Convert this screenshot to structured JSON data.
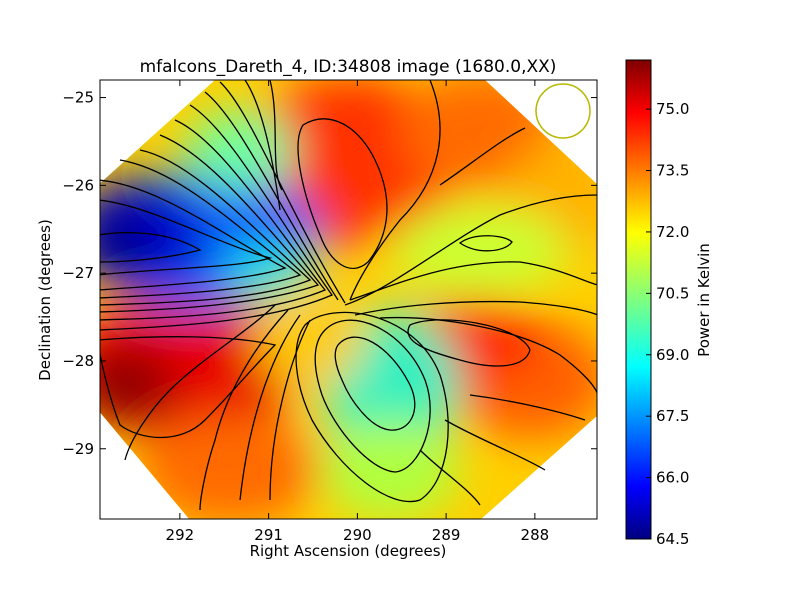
{
  "chart_data": {
    "type": "heatmap",
    "title": "mfalcons_Dareth_4, ID:34808 image (1680.0,XX)",
    "xlabel": "Right Ascension (degrees)",
    "ylabel": "Declination (degrees)",
    "xlim": [
      292.9,
      287.3
    ],
    "ylim": [
      -29.8,
      -24.8
    ],
    "x_ticks": [
      292,
      291,
      290,
      289,
      288
    ],
    "x_tick_labels": [
      "292",
      "291",
      "290",
      "289",
      "288"
    ],
    "y_ticks": [
      -25,
      -26,
      -27,
      -28,
      -29
    ],
    "y_tick_labels": [
      "−25",
      "−26",
      "−27",
      "−28",
      "−29"
    ],
    "colorbar": {
      "label": "Power in Kelvin",
      "range": [
        64.5,
        76.2
      ],
      "ticks": [
        75.0,
        73.5,
        72.0,
        70.5,
        69.0,
        67.5,
        66.0,
        64.5
      ],
      "tick_labels": [
        "75.0",
        "73.5",
        "72.0",
        "70.5",
        "69.0",
        "67.5",
        "66.0",
        "64.5"
      ],
      "colormap": "jet"
    },
    "footprint": "diamond",
    "beam_circle": {
      "color": "#b8b800"
    },
    "features": [
      {
        "kind": "peak",
        "ra": 290.1,
        "dec": -26.3,
        "value": 75.0
      },
      {
        "kind": "peak",
        "ra": 292.4,
        "dec": -28.2,
        "value": 76.0
      },
      {
        "kind": "peak",
        "ra": 288.8,
        "dec": -27.8,
        "value": 74.6
      },
      {
        "kind": "trough",
        "ra": 292.9,
        "dec": -26.6,
        "value": 64.5
      },
      {
        "kind": "trough",
        "ra": 289.6,
        "dec": -28.2,
        "value": 68.6
      },
      {
        "kind": "minor-peak",
        "ra": 288.6,
        "dec": -26.7,
        "value": 71.7
      }
    ],
    "grid": false
  }
}
